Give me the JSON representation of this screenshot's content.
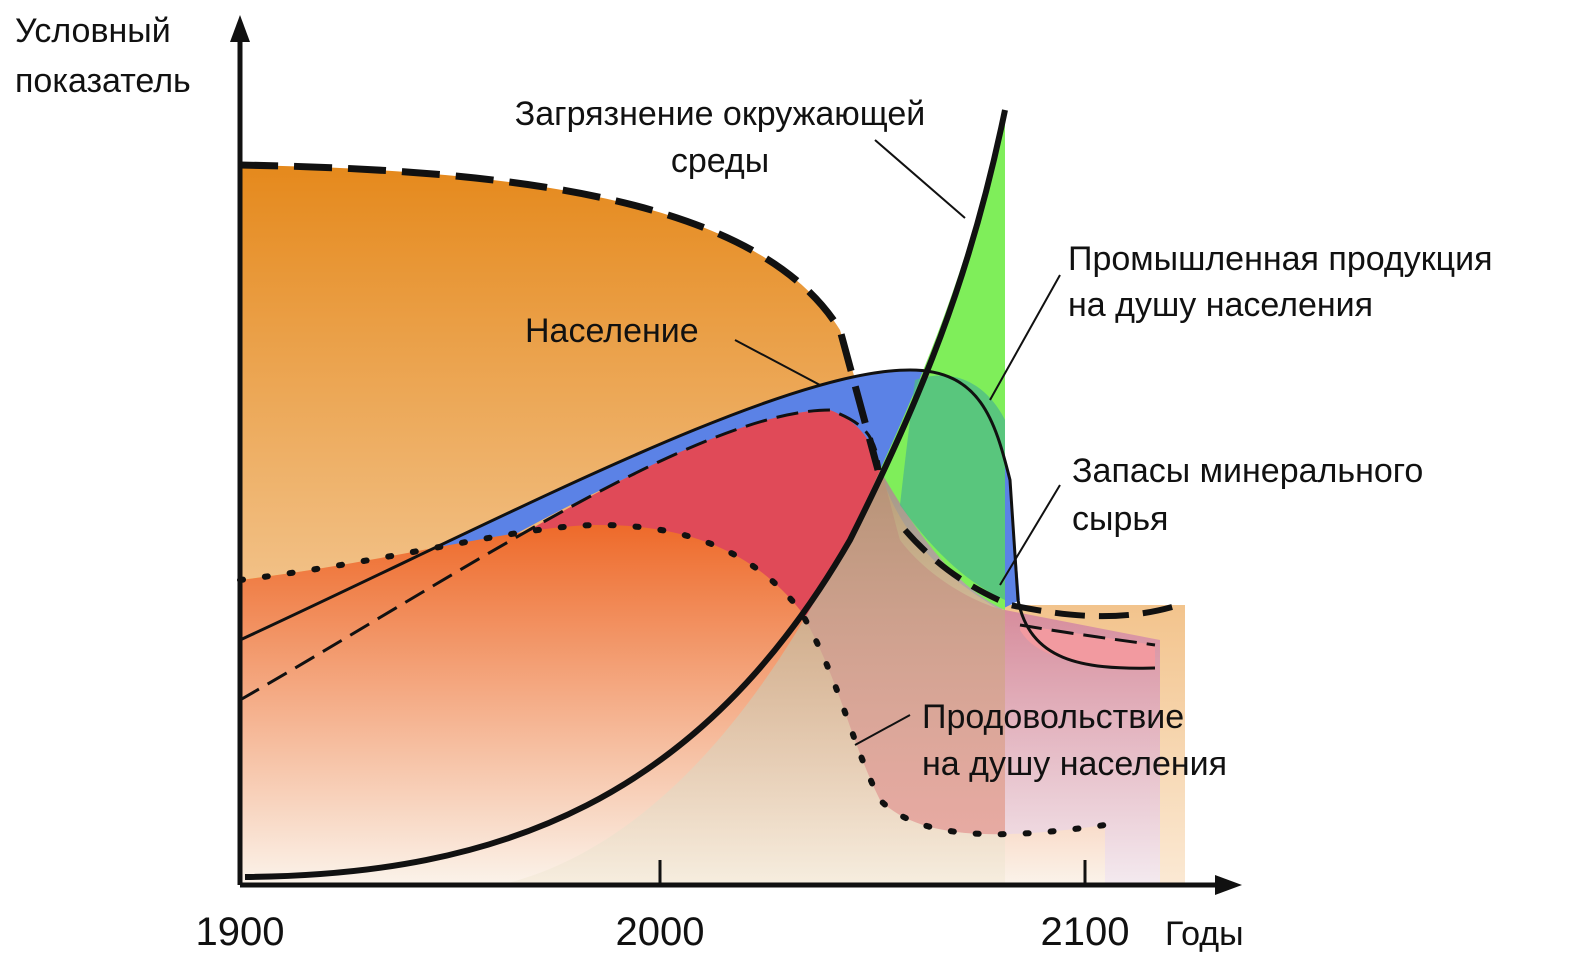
{
  "y_axis": {
    "label": [
      "Условный",
      "показатель"
    ]
  },
  "x_axis": {
    "ticks": [
      "1900",
      "2000",
      "2100"
    ],
    "label": "Годы"
  },
  "labels": {
    "pollution": [
      "Загрязнение окружающей",
      "среды"
    ],
    "industry": [
      "Промышленная продукция",
      "на душу населения"
    ],
    "population": "Население",
    "resources": [
      "Запасы минерального",
      "сырья"
    ],
    "food": [
      "Продовольствие",
      "на душу населения"
    ]
  }
}
